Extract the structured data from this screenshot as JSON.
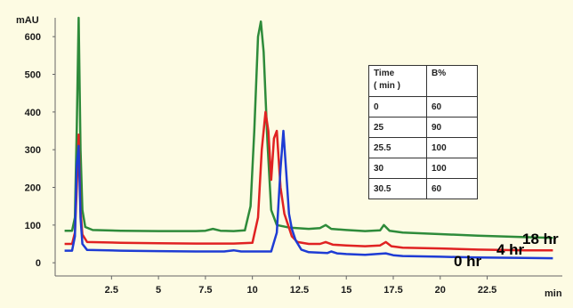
{
  "chart_data": {
    "type": "line",
    "ylabel": "mAU",
    "xlabel": "min",
    "xlim": [
      -0.5,
      26.5
    ],
    "ylim": [
      -35,
      650
    ],
    "x_ticks": [
      2.5,
      5,
      7.5,
      10,
      12.5,
      15,
      17.5,
      20,
      22.5
    ],
    "y_ticks": [
      0,
      100,
      200,
      300,
      400,
      500,
      600
    ],
    "series": [
      {
        "name": "18 hr",
        "color": "#2e8b3a",
        "points": [
          [
            0.0,
            85
          ],
          [
            0.4,
            85
          ],
          [
            0.55,
            120
          ],
          [
            0.65,
            360
          ],
          [
            0.75,
            650
          ],
          [
            0.85,
            300
          ],
          [
            0.95,
            140
          ],
          [
            1.1,
            95
          ],
          [
            1.5,
            87
          ],
          [
            3,
            85
          ],
          [
            5,
            84
          ],
          [
            7,
            84
          ],
          [
            7.5,
            85
          ],
          [
            7.9,
            90
          ],
          [
            8.3,
            85
          ],
          [
            9,
            84
          ],
          [
            9.6,
            86
          ],
          [
            9.9,
            150
          ],
          [
            10.1,
            350
          ],
          [
            10.3,
            600
          ],
          [
            10.45,
            640
          ],
          [
            10.6,
            560
          ],
          [
            10.8,
            320
          ],
          [
            11.0,
            140
          ],
          [
            11.3,
            100
          ],
          [
            12,
            93
          ],
          [
            13,
            90
          ],
          [
            13.6,
            92
          ],
          [
            13.9,
            100
          ],
          [
            14.2,
            90
          ],
          [
            15,
            87
          ],
          [
            16,
            84
          ],
          [
            16.8,
            86
          ],
          [
            17.0,
            100
          ],
          [
            17.3,
            85
          ],
          [
            18,
            80
          ],
          [
            20,
            76
          ],
          [
            22,
            72
          ],
          [
            24.5,
            68
          ],
          [
            26,
            66
          ]
        ]
      },
      {
        "name": "4 hr",
        "color": "#e02222",
        "points": [
          [
            0.0,
            50
          ],
          [
            0.4,
            50
          ],
          [
            0.55,
            80
          ],
          [
            0.65,
            200
          ],
          [
            0.75,
            340
          ],
          [
            0.85,
            140
          ],
          [
            0.95,
            75
          ],
          [
            1.2,
            55
          ],
          [
            3,
            53
          ],
          [
            5,
            52
          ],
          [
            7,
            51
          ],
          [
            9,
            51
          ],
          [
            10.0,
            53
          ],
          [
            10.3,
            120
          ],
          [
            10.5,
            300
          ],
          [
            10.7,
            400
          ],
          [
            10.85,
            350
          ],
          [
            11.0,
            220
          ],
          [
            11.15,
            330
          ],
          [
            11.3,
            350
          ],
          [
            11.5,
            200
          ],
          [
            11.7,
            130
          ],
          [
            11.9,
            100
          ],
          [
            12.1,
            70
          ],
          [
            12.4,
            55
          ],
          [
            13,
            50
          ],
          [
            13.6,
            50
          ],
          [
            13.9,
            55
          ],
          [
            14.3,
            48
          ],
          [
            15,
            46
          ],
          [
            16,
            44
          ],
          [
            16.8,
            46
          ],
          [
            17.1,
            55
          ],
          [
            17.4,
            44
          ],
          [
            18,
            40
          ],
          [
            20,
            38
          ],
          [
            22,
            35
          ],
          [
            24.5,
            33
          ],
          [
            26,
            33
          ]
        ]
      },
      {
        "name": "0 hr",
        "color": "#1e3cd4",
        "points": [
          [
            0.0,
            32
          ],
          [
            0.4,
            32
          ],
          [
            0.55,
            70
          ],
          [
            0.65,
            260
          ],
          [
            0.75,
            310
          ],
          [
            0.85,
            120
          ],
          [
            0.95,
            50
          ],
          [
            1.2,
            34
          ],
          [
            3,
            32
          ],
          [
            5,
            31
          ],
          [
            7,
            30
          ],
          [
            8.5,
            30
          ],
          [
            9,
            33
          ],
          [
            9.4,
            30
          ],
          [
            10,
            30
          ],
          [
            11,
            30
          ],
          [
            11.3,
            80
          ],
          [
            11.5,
            250
          ],
          [
            11.65,
            350
          ],
          [
            11.8,
            240
          ],
          [
            11.95,
            130
          ],
          [
            12.1,
            90
          ],
          [
            12.3,
            60
          ],
          [
            12.6,
            35
          ],
          [
            13,
            28
          ],
          [
            14,
            26
          ],
          [
            14.2,
            30
          ],
          [
            14.5,
            25
          ],
          [
            15,
            23
          ],
          [
            16,
            21
          ],
          [
            17.1,
            25
          ],
          [
            17.5,
            20
          ],
          [
            18,
            18
          ],
          [
            20,
            16
          ],
          [
            22,
            14
          ],
          [
            24.5,
            13
          ],
          [
            26,
            12
          ]
        ]
      }
    ],
    "series_label_positions": [
      "18 hr",
      "4 hr",
      "0 hr"
    ],
    "gradient_table": {
      "headers": [
        "Time\n( min )",
        "B%"
      ],
      "rows": [
        [
          "0",
          "60"
        ],
        [
          "25",
          "90"
        ],
        [
          "25.5",
          "100"
        ],
        [
          "30",
          "100"
        ],
        [
          "30.5",
          "60"
        ]
      ]
    }
  }
}
